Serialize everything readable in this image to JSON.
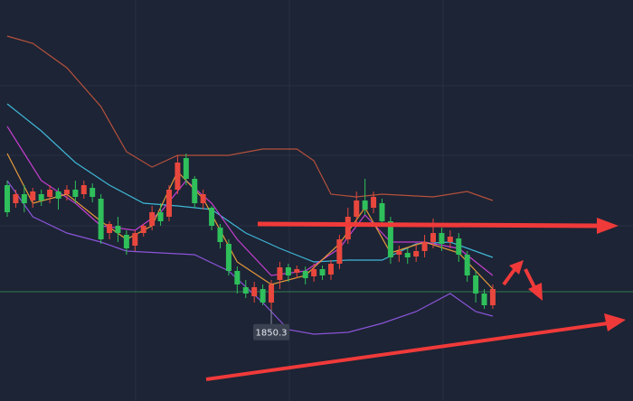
{
  "chart_data": {
    "type": "candlestick",
    "up_color": "#e8473d",
    "down_color": "#2fbf5b",
    "ylim": [
      1825,
      1936
    ],
    "open": [
      1884.75,
      1879.75,
      1882.25,
      1880.5,
      1882.25,
      1881.5,
      1883,
      1882.25,
      1883.5,
      1882.25,
      1884,
      1881,
      1871.5,
      1873.5,
      1871,
      1868,
      1871.5,
      1873.5,
      1877.25,
      1876,
      1883.5,
      1892.25,
      1886.5,
      1879.75,
      1878.5,
      1873,
      1868.5,
      1861,
      1856.5,
      1854,
      1856,
      1852.25,
      1858.5,
      1862,
      1860.5,
      1861,
      1859.5,
      1861.5,
      1860,
      1863,
      1869.75,
      1876,
      1880.5,
      1878.5,
      1879.75,
      1874.75,
      1865.5,
      1866,
      1865,
      1866.5,
      1869,
      1871.5,
      1869,
      1870,
      1865.5,
      1859.75,
      1854.75,
      1851.5
    ],
    "high": [
      1886,
      1883.5,
      1884.75,
      1884,
      1883.5,
      1884.75,
      1884,
      1884.75,
      1886,
      1886,
      1885.25,
      1882.25,
      1874.75,
      1876,
      1872.25,
      1872.25,
      1874,
      1879,
      1879.75,
      1884.75,
      1893,
      1893.5,
      1887.25,
      1883.5,
      1879,
      1874,
      1869.75,
      1862.25,
      1858.5,
      1858,
      1857.25,
      1858.5,
      1863.5,
      1863,
      1862.5,
      1862.25,
      1863,
      1862.5,
      1864,
      1871,
      1878.5,
      1883,
      1886.5,
      1883,
      1881,
      1876,
      1868,
      1867.25,
      1868.5,
      1871,
      1875.5,
      1873,
      1872.25,
      1871.5,
      1866.5,
      1861,
      1856,
      1857.25
    ],
    "low": [
      1876,
      1878.5,
      1877.25,
      1878.5,
      1879,
      1879.75,
      1878,
      1880.5,
      1879.75,
      1881,
      1880,
      1868.5,
      1869.75,
      1869,
      1865.5,
      1866.5,
      1870.5,
      1872.25,
      1873.5,
      1874.75,
      1882.25,
      1884.75,
      1878.5,
      1878,
      1872.25,
      1867.25,
      1859.75,
      1854.75,
      1853.5,
      1852.25,
      1851.5,
      1850.3,
      1856,
      1858,
      1859,
      1857.25,
      1858,
      1858.5,
      1858.5,
      1861.5,
      1868.5,
      1874,
      1876.5,
      1877,
      1873.5,
      1863,
      1863.5,
      1863,
      1863.5,
      1864.75,
      1867.25,
      1866.5,
      1867.25,
      1863.5,
      1858,
      1852.25,
      1850.5,
      1850.5
    ],
    "close": [
      1877.25,
      1882.25,
      1879.75,
      1883,
      1880.5,
      1883.5,
      1881,
      1883.5,
      1881.5,
      1884.75,
      1881.5,
      1869.75,
      1874,
      1871.5,
      1867.25,
      1871.5,
      1873.5,
      1877.25,
      1874.75,
      1883.5,
      1891,
      1886.5,
      1879.75,
      1882.25,
      1873.5,
      1869,
      1861,
      1857.25,
      1854.75,
      1856.5,
      1852.25,
      1857.25,
      1862,
      1859.75,
      1861.5,
      1859,
      1861.5,
      1859.75,
      1863,
      1869.75,
      1876,
      1880.5,
      1878,
      1881.5,
      1874.75,
      1864.75,
      1866.5,
      1864.75,
      1866.5,
      1869,
      1871.5,
      1868.5,
      1870.5,
      1865.5,
      1859.75,
      1854.75,
      1851.5,
      1856
    ],
    "lines": [
      {
        "color": "#b4513c",
        "x": [
          0,
          3,
          7,
          11,
          14,
          17,
          20,
          26,
          30,
          34,
          36,
          38,
          41,
          44,
          50,
          54,
          57
        ],
        "values": [
          1926,
          1924,
          1917.25,
          1906.5,
          1894,
          1889.75,
          1893,
          1893,
          1894.75,
          1894.75,
          1891.5,
          1882.25,
          1881.5,
          1882.25,
          1881.5,
          1883,
          1880.5
        ]
      },
      {
        "color": "#3fb6d6",
        "x": [
          0,
          4,
          8,
          12,
          16,
          20,
          24,
          28,
          32,
          36,
          40,
          44,
          48,
          52,
          57
        ],
        "values": [
          1907.25,
          1899.75,
          1891,
          1884.75,
          1879.75,
          1879,
          1878,
          1871.5,
          1867.25,
          1863.5,
          1864,
          1864,
          1868.5,
          1869,
          1864.75
        ]
      },
      {
        "color": "#c43fd0",
        "x": [
          0,
          4,
          8,
          11,
          15,
          18,
          21,
          24,
          27,
          31,
          35,
          39,
          42,
          45,
          49,
          53,
          57
        ],
        "values": [
          1901,
          1886,
          1879.75,
          1873.5,
          1872.25,
          1877.25,
          1886,
          1879.75,
          1869.75,
          1859.75,
          1861,
          1867.25,
          1876.5,
          1869,
          1869,
          1867.25,
          1859.75
        ]
      },
      {
        "color": "#8a54d8",
        "x": [
          0,
          3,
          7,
          11,
          14,
          18,
          22,
          26,
          30,
          33,
          36,
          40,
          44,
          48,
          52,
          55,
          57
        ],
        "values": [
          1886,
          1876,
          1871.5,
          1869,
          1866.5,
          1866,
          1865.5,
          1861,
          1852.25,
          1844.75,
          1843.5,
          1844,
          1846.5,
          1849.75,
          1854.75,
          1849.75,
          1848.5
        ]
      },
      {
        "color": "#e69a3a",
        "x": [
          0,
          3,
          7,
          11,
          14,
          17,
          20,
          23,
          27,
          31,
          35,
          39,
          42,
          45,
          49,
          53,
          57
        ],
        "values": [
          1893.5,
          1879.75,
          1882.25,
          1874.75,
          1869.75,
          1873.5,
          1888.5,
          1881,
          1863.5,
          1857.25,
          1859.75,
          1868.5,
          1878.5,
          1866,
          1869,
          1866,
          1856
        ]
      }
    ],
    "hline": {
      "value": 1855.25,
      "color": "#2c6b4e"
    },
    "annotations": [
      {
        "text": "1850.3",
        "at": 31
      }
    ]
  }
}
